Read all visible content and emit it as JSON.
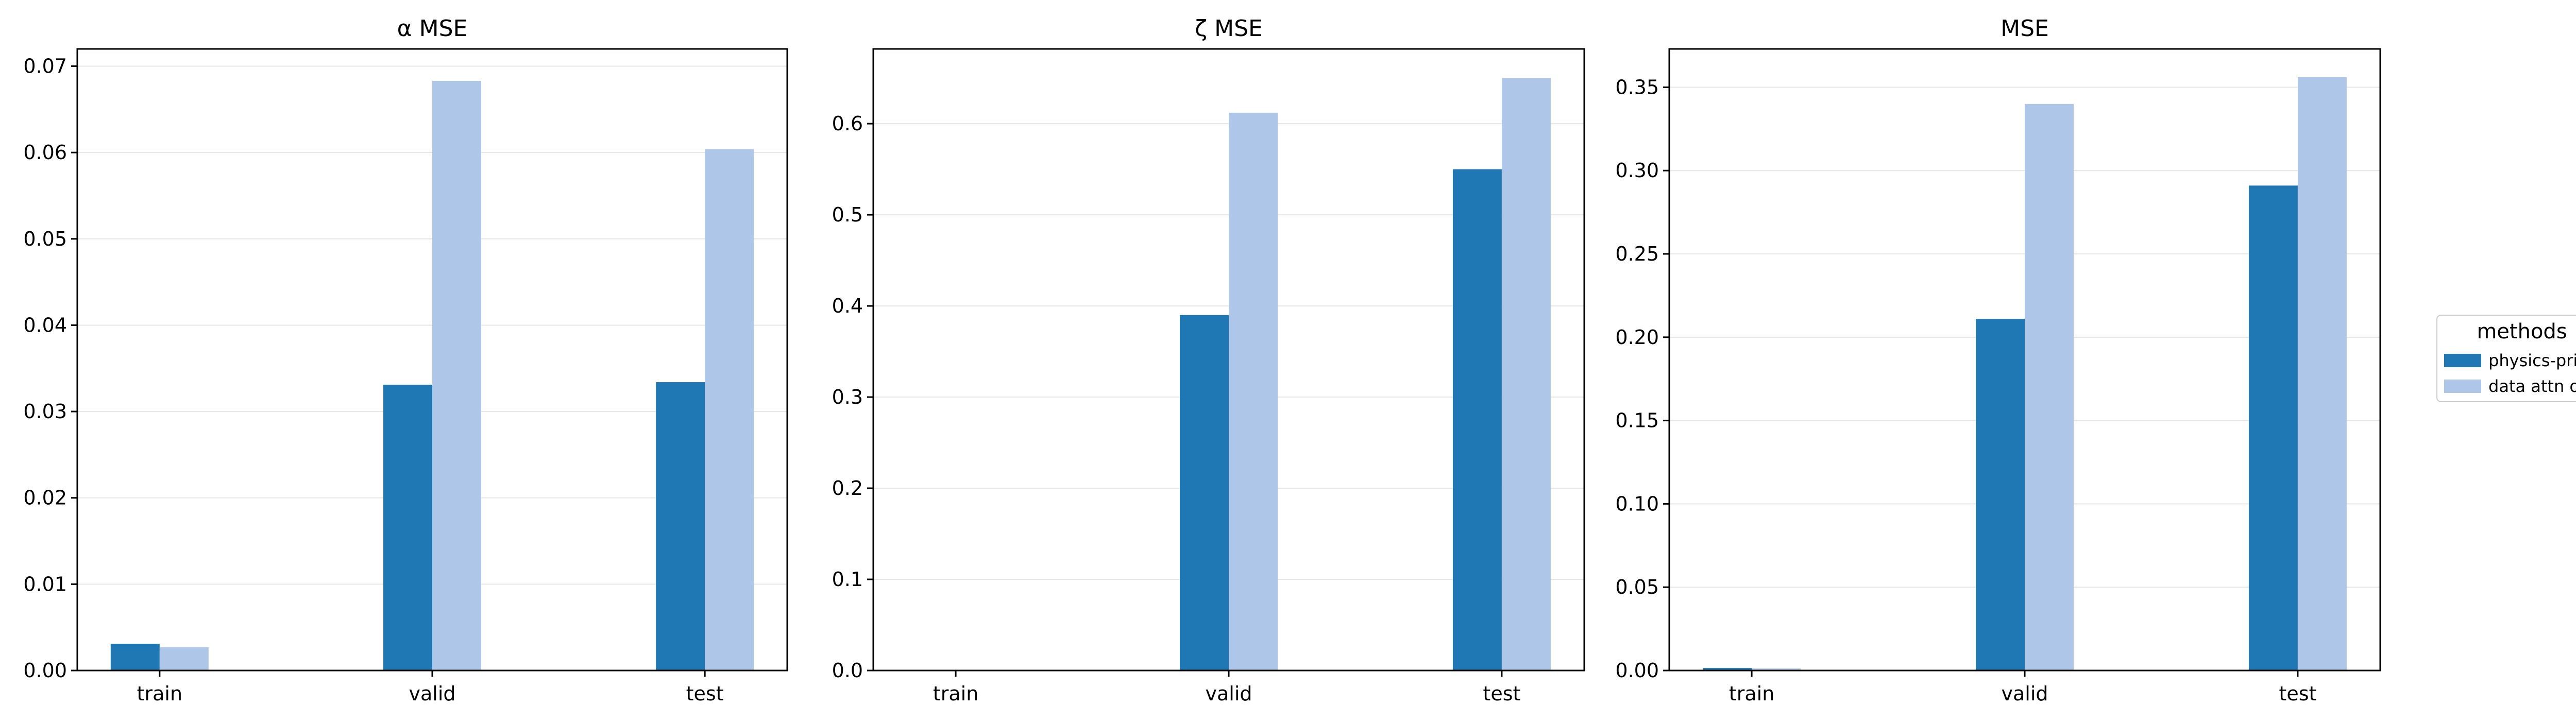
{
  "chart_data": [
    {
      "type": "bar",
      "title": "α MSE",
      "xlabel": "",
      "ylabel": "",
      "categories": [
        "train",
        "valid",
        "test"
      ],
      "series": [
        {
          "name": "physics-prior attn",
          "values": [
            0.0031,
            0.0331,
            0.0334
          ]
        },
        {
          "name": "data attn only",
          "values": [
            0.0027,
            0.0683,
            0.0604
          ]
        }
      ],
      "ylim": [
        0,
        0.072
      ],
      "yticks": [
        "0.00",
        "0.01",
        "0.02",
        "0.03",
        "0.04",
        "0.05",
        "0.06",
        "0.07"
      ],
      "ytick_values": [
        0,
        0.01,
        0.02,
        0.03,
        0.04,
        0.05,
        0.06,
        0.07
      ],
      "grid": "horizontal"
    },
    {
      "type": "bar",
      "title": "ζ MSE",
      "xlabel": "",
      "ylabel": "",
      "categories": [
        "train",
        "valid",
        "test"
      ],
      "series": [
        {
          "name": "physics-prior attn",
          "values": [
            0.0,
            0.39,
            0.55
          ]
        },
        {
          "name": "data attn only",
          "values": [
            0.0,
            0.612,
            0.65
          ]
        }
      ],
      "ylim": [
        0,
        0.682
      ],
      "yticks": [
        "0.0",
        "0.1",
        "0.2",
        "0.3",
        "0.4",
        "0.5",
        "0.6"
      ],
      "ytick_values": [
        0,
        0.1,
        0.2,
        0.3,
        0.4,
        0.5,
        0.6
      ],
      "grid": "horizontal"
    },
    {
      "type": "bar",
      "title": "MSE",
      "xlabel": "",
      "ylabel": "",
      "categories": [
        "train",
        "valid",
        "test"
      ],
      "series": [
        {
          "name": "physics-prior attn",
          "values": [
            0.0015,
            0.211,
            0.291
          ]
        },
        {
          "name": "data attn only",
          "values": [
            0.0012,
            0.34,
            0.356
          ]
        }
      ],
      "ylim": [
        0,
        0.373
      ],
      "yticks": [
        "0.00",
        "0.05",
        "0.10",
        "0.15",
        "0.20",
        "0.25",
        "0.30",
        "0.35"
      ],
      "ytick_values": [
        0,
        0.05,
        0.1,
        0.15,
        0.2,
        0.25,
        0.3,
        0.35
      ],
      "grid": "horizontal"
    }
  ],
  "legend": {
    "title": "methods",
    "placement": "right",
    "entries": [
      "physics-prior attn",
      "data attn only"
    ]
  },
  "colors": {
    "physics-prior attn": "#1f77b4",
    "data attn only": "#aec7e8",
    "grid": "#e6e6e6",
    "axis": "#000000"
  }
}
